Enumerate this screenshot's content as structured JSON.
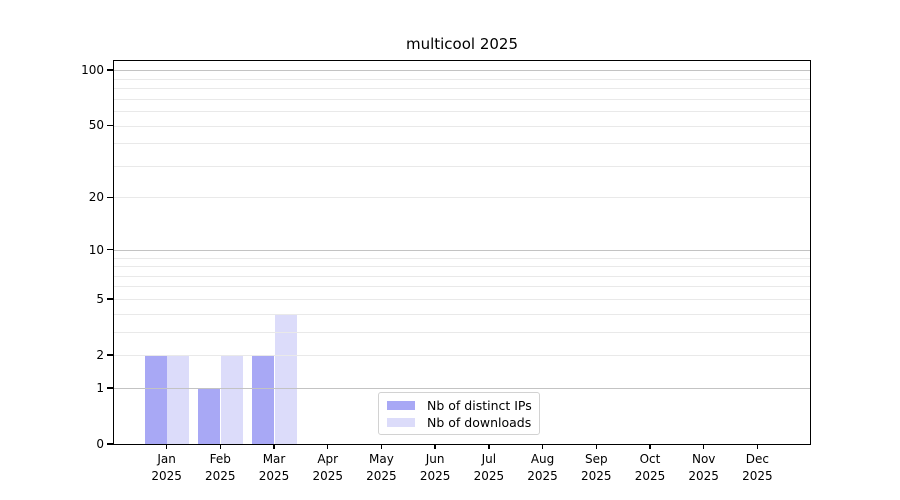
{
  "chart_data": {
    "type": "bar",
    "title": "multicool 2025",
    "categories": [
      "Jan",
      "Feb",
      "Mar",
      "Apr",
      "May",
      "Jun",
      "Jul",
      "Aug",
      "Sep",
      "Oct",
      "Nov",
      "Dec"
    ],
    "category_year": "2025",
    "series": [
      {
        "name": "Nb of distinct IPs",
        "color": "#a8a8f5",
        "values": [
          2,
          1,
          2,
          0,
          0,
          0,
          0,
          0,
          0,
          0,
          0,
          0
        ]
      },
      {
        "name": "Nb of downloads",
        "color": "#dcdcfa",
        "values": [
          2,
          2,
          4,
          0,
          0,
          0,
          0,
          0,
          0,
          0,
          0,
          0
        ]
      }
    ],
    "xlabel": "",
    "ylabel": "",
    "yscale": "log1p",
    "ylim": [
      0,
      112
    ],
    "yticks": [
      0,
      1,
      2,
      5,
      10,
      20,
      50,
      100
    ],
    "major_gridlines": [
      1,
      10,
      100
    ],
    "minor_gridlines": [
      2,
      3,
      4,
      5,
      6,
      7,
      8,
      9,
      20,
      30,
      40,
      50,
      60,
      70,
      80,
      90
    ],
    "grid": "y-only",
    "legend_position": "lower center",
    "colors": {
      "spine": "#000000",
      "major_grid": "#c3c3c3",
      "minor_grid": "#e9e9e9",
      "text": "#000000"
    }
  }
}
